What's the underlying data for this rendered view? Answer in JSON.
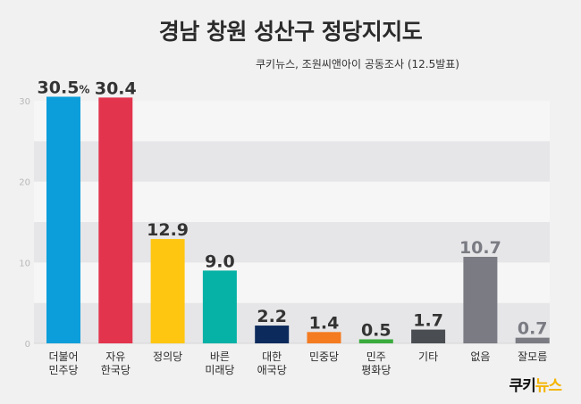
{
  "title": "경남 창원 성산구 정당지지도",
  "subtitle": "쿠키뉴스, 조원씨앤아이 공동조사 (12.5발표)",
  "logo": {
    "part1": "쿠키",
    "part2": "뉴스"
  },
  "chart_data": {
    "type": "bar",
    "ylim": [
      0,
      30
    ],
    "yticks": [
      "0",
      "10",
      "20",
      "30"
    ],
    "grid": "alternating bands",
    "bars": [
      {
        "label": [
          "더불어",
          "민주당"
        ],
        "value": 30.5,
        "text": "30.5",
        "unit": "%",
        "color": "#0b9edb",
        "label_color": "#333333"
      },
      {
        "label": [
          "자유",
          "한국당"
        ],
        "value": 30.4,
        "text": "30.4",
        "unit": "",
        "color": "#e3344e",
        "label_color": "#333333"
      },
      {
        "label": [
          "정의당"
        ],
        "value": 12.9,
        "text": "12.9",
        "unit": "",
        "color": "#fec611",
        "label_color": "#333333"
      },
      {
        "label": [
          "바른",
          "미래당"
        ],
        "value": 9.0,
        "text": "9.0",
        "unit": "",
        "color": "#06b1a5",
        "label_color": "#333333"
      },
      {
        "label": [
          "대한",
          "애국당"
        ],
        "value": 2.2,
        "text": "2.2",
        "unit": "",
        "color": "#0d2a5c",
        "label_color": "#333333"
      },
      {
        "label": [
          "민중당"
        ],
        "value": 1.4,
        "text": "1.4",
        "unit": "",
        "color": "#f47b20",
        "label_color": "#333333"
      },
      {
        "label": [
          "민주",
          "평화당"
        ],
        "value": 0.5,
        "text": "0.5",
        "unit": "",
        "color": "#3bab3d",
        "label_color": "#333333"
      },
      {
        "label": [
          "기타"
        ],
        "value": 1.7,
        "text": "1.7",
        "unit": "",
        "color": "#4a4d52",
        "label_color": "#333333"
      },
      {
        "label": [
          "없음"
        ],
        "value": 10.7,
        "text": "10.7",
        "unit": "",
        "color": "#7a7b83",
        "label_color": "#7a7b83"
      },
      {
        "label": [
          "잘모름"
        ],
        "value": 0.7,
        "text": "0.7",
        "unit": "",
        "color": "#7a7b83",
        "label_color": "#7a7b83"
      }
    ]
  }
}
